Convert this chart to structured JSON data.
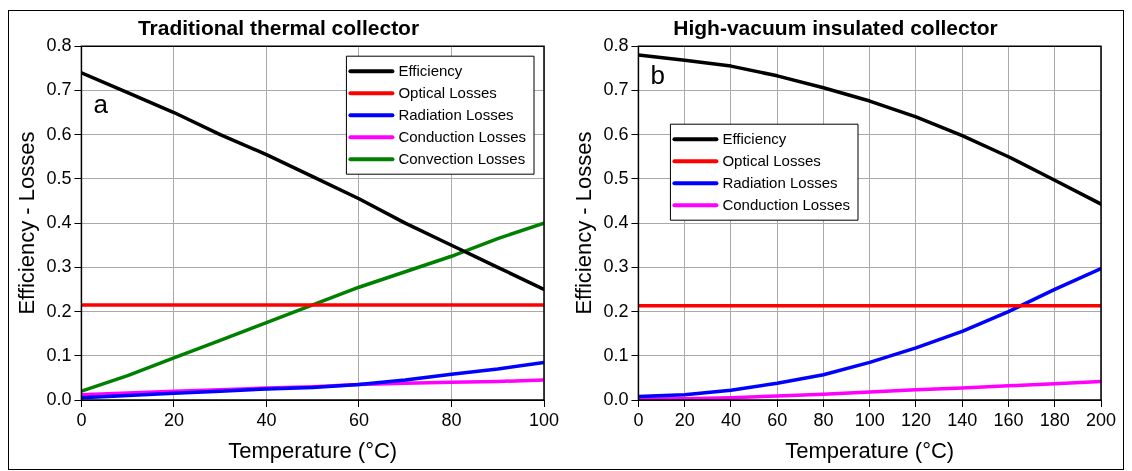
{
  "chart_data": [
    {
      "type": "line",
      "title": "Traditional thermal collector",
      "xlabel": "Temperature (°C)",
      "ylabel": "Efficiency - Losses",
      "annotations": [
        "a"
      ],
      "x": [
        0,
        10,
        20,
        30,
        40,
        50,
        60,
        70,
        80,
        90,
        100
      ],
      "series": [
        {
          "name": "Efficiency",
          "color": "#000000",
          "values": [
            0.74,
            0.695,
            0.65,
            0.6,
            0.555,
            0.505,
            0.455,
            0.4,
            0.35,
            0.3,
            0.25
          ]
        },
        {
          "name": "Optical Losses",
          "color": "#ff0000",
          "values": [
            0.215,
            0.215,
            0.215,
            0.215,
            0.215,
            0.215,
            0.215,
            0.215,
            0.215,
            0.215,
            0.215
          ]
        },
        {
          "name": "Radiation Losses",
          "color": "#0000ff",
          "values": [
            0.005,
            0.01,
            0.015,
            0.02,
            0.025,
            0.028,
            0.035,
            0.045,
            0.058,
            0.07,
            0.085
          ]
        },
        {
          "name": "Conduction Losses",
          "color": "#ff00ff",
          "values": [
            0.012,
            0.016,
            0.02,
            0.023,
            0.027,
            0.03,
            0.035,
            0.038,
            0.04,
            0.042,
            0.045
          ]
        },
        {
          "name": "Convection Losses",
          "color": "#008000",
          "values": [
            0.02,
            0.055,
            0.095,
            0.135,
            0.175,
            0.215,
            0.255,
            0.29,
            0.325,
            0.365,
            0.4
          ]
        }
      ],
      "xlim": [
        0,
        100
      ],
      "xticks": [
        0,
        20,
        40,
        60,
        80,
        100
      ],
      "ylim": [
        0,
        0.8
      ],
      "yticks": [
        {
          "value": 0,
          "label": "0.0"
        },
        0.1,
        0.2,
        0.3,
        0.4,
        0.5,
        0.6,
        0.7,
        0.8
      ],
      "grid": true,
      "legend": "top right",
      "marker": "none",
      "line_style": "solid"
    },
    {
      "type": "line",
      "title": "High-vacuum insulated collector",
      "xlabel": "Temperature (°C)",
      "ylabel": "Efficiency - Losses",
      "annotations": [
        "b"
      ],
      "x": [
        0,
        20,
        40,
        60,
        80,
        100,
        120,
        140,
        160,
        180,
        200
      ],
      "series": [
        {
          "name": "Efficiency",
          "color": "#000000",
          "values": [
            0.78,
            0.768,
            0.755,
            0.733,
            0.706,
            0.676,
            0.64,
            0.598,
            0.55,
            0.497,
            0.443
          ]
        },
        {
          "name": "Optical Losses",
          "color": "#ff0000",
          "values": [
            0.213,
            0.213,
            0.213,
            0.213,
            0.213,
            0.213,
            0.213,
            0.213,
            0.213,
            0.213,
            0.213
          ]
        },
        {
          "name": "Radiation Losses",
          "color": "#0000ff",
          "values": [
            0.008,
            0.012,
            0.022,
            0.038,
            0.057,
            0.085,
            0.118,
            0.155,
            0.2,
            0.25,
            0.297
          ]
        },
        {
          "name": "Conduction Losses",
          "color": "#ff00ff",
          "values": [
            0.002,
            0.003,
            0.005,
            0.009,
            0.013,
            0.018,
            0.023,
            0.027,
            0.032,
            0.037,
            0.042
          ]
        }
      ],
      "xlim": [
        0,
        200
      ],
      "xticks": [
        0,
        20,
        40,
        60,
        80,
        100,
        120,
        140,
        160,
        180,
        200
      ],
      "ylim": [
        0,
        0.8
      ],
      "yticks": [
        {
          "value": 0,
          "label": "0.0"
        },
        0.1,
        0.2,
        0.3,
        0.4,
        0.5,
        0.6,
        0.7,
        0.8
      ],
      "grid": true,
      "legend": "top left",
      "marker": "none",
      "line_style": "solid"
    }
  ]
}
